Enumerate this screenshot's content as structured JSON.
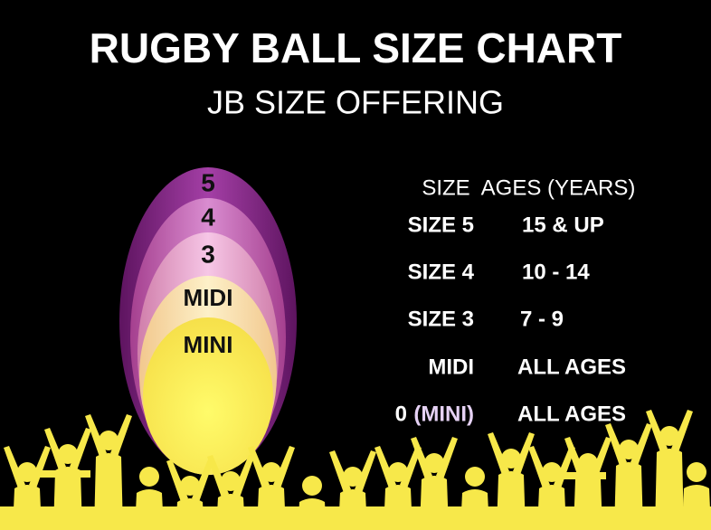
{
  "header": {
    "title": "RUGBY BALL SIZE CHART",
    "subtitle": "JB SIZE OFFERING"
  },
  "ball": {
    "labels": [
      "5",
      "4",
      "3",
      "MIDI",
      "MINI"
    ]
  },
  "table": {
    "headers": [
      "SIZE",
      "AGES (YEARS)"
    ],
    "rows": [
      [
        "SIZE 5",
        "15 & UP"
      ],
      [
        "SIZE 4",
        "10 - 14"
      ],
      [
        "SIZE 3",
        "7 - 9"
      ],
      [
        "MIDI",
        "ALL AGES"
      ],
      [
        [
          "0",
          "(MINI)"
        ],
        "ALL AGES"
      ]
    ]
  }
}
